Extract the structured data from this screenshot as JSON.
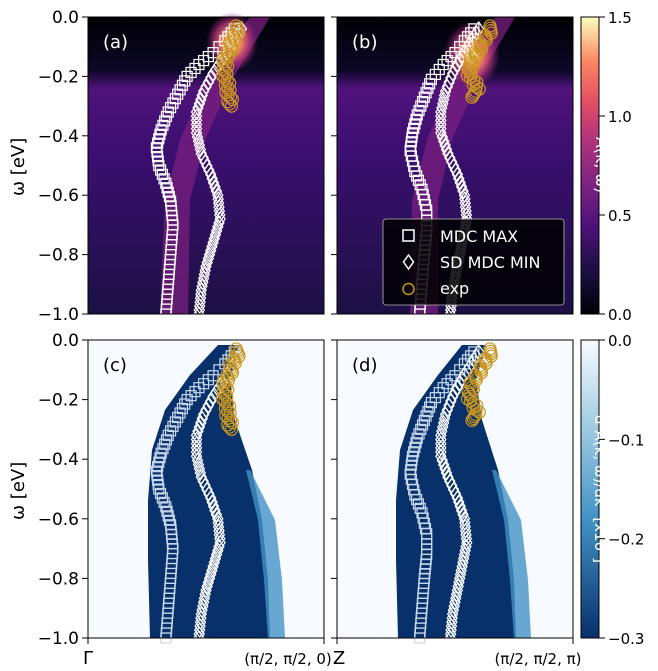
{
  "figure": {
    "y_axis_label": "ω [eV]",
    "colorbar_top_label": "A(k, ω)",
    "colorbar_bottom_label": "d²A(k, ω)/dk² [x10³]",
    "colorbar_top_ticks": [
      "1.5",
      "1.0",
      "0.5",
      "0.0"
    ],
    "colorbar_bottom_ticks": [
      "0.0",
      "−0.1",
      "−0.2",
      "−0.3"
    ],
    "y_ticks": [
      "0.0",
      "−0.2",
      "−0.4",
      "−0.6",
      "−0.8",
      "−1.0"
    ],
    "x_tick_left_a": "Γ",
    "x_tick_right_a": "(π/2, π/2, 0)",
    "x_tick_left_b": "Z",
    "x_tick_right_b": "(π/2, π/2, π)",
    "legend": [
      {
        "label": "MDC MAX",
        "marker": "square",
        "color": "#ffffff"
      },
      {
        "label": "SD MDC MIN",
        "marker": "diamond",
        "color": "#ffffff"
      },
      {
        "label": "exp",
        "marker": "circle",
        "color": "#c8961e"
      }
    ],
    "colors": {
      "exp": "#c8961e",
      "dark_bg": "#000004",
      "blue_dark": "#08306b"
    }
  },
  "chart_data": [
    {
      "panel": "a",
      "panel_label": "(a)",
      "type": "heatmap",
      "ylim": [
        -1.0,
        0.0
      ],
      "colorbar_range": [
        0.0,
        1.5
      ],
      "mdc_max": [
        [
          0.62,
          -0.04
        ],
        [
          0.58,
          -0.08
        ],
        [
          0.53,
          -0.12
        ],
        [
          0.47,
          -0.16
        ],
        [
          0.42,
          -0.2
        ],
        [
          0.38,
          -0.26
        ],
        [
          0.34,
          -0.32
        ],
        [
          0.31,
          -0.38
        ],
        [
          0.29,
          -0.44
        ],
        [
          0.3,
          -0.5
        ],
        [
          0.33,
          -0.56
        ],
        [
          0.35,
          -0.62
        ],
        [
          0.36,
          -0.7
        ],
        [
          0.35,
          -0.8
        ],
        [
          0.34,
          -0.9
        ],
        [
          0.33,
          -1.0
        ]
      ],
      "sd_mdc_min": [
        [
          0.65,
          -0.04
        ],
        [
          0.62,
          -0.08
        ],
        [
          0.58,
          -0.13
        ],
        [
          0.53,
          -0.19
        ],
        [
          0.49,
          -0.25
        ],
        [
          0.46,
          -0.32
        ],
        [
          0.46,
          -0.39
        ],
        [
          0.48,
          -0.46
        ],
        [
          0.52,
          -0.53
        ],
        [
          0.55,
          -0.6
        ],
        [
          0.56,
          -0.68
        ],
        [
          0.53,
          -0.76
        ],
        [
          0.5,
          -0.84
        ],
        [
          0.48,
          -0.92
        ],
        [
          0.47,
          -1.0
        ]
      ],
      "exp": [
        [
          0.64,
          -0.03
        ],
        [
          0.62,
          -0.07
        ],
        [
          0.6,
          -0.11
        ],
        [
          0.58,
          -0.15
        ],
        [
          0.58,
          -0.19
        ],
        [
          0.59,
          -0.23
        ],
        [
          0.6,
          -0.27
        ],
        [
          0.6,
          -0.3
        ]
      ]
    },
    {
      "panel": "b",
      "panel_label": "(b)",
      "type": "heatmap",
      "ylim": [
        -1.0,
        0.0
      ],
      "colorbar_range": [
        0.0,
        1.5
      ],
      "mdc_max": [
        [
          0.58,
          -0.04
        ],
        [
          0.54,
          -0.08
        ],
        [
          0.5,
          -0.12
        ],
        [
          0.45,
          -0.16
        ],
        [
          0.4,
          -0.21
        ],
        [
          0.37,
          -0.27
        ],
        [
          0.34,
          -0.33
        ],
        [
          0.32,
          -0.39
        ],
        [
          0.31,
          -0.45
        ],
        [
          0.33,
          -0.52
        ],
        [
          0.36,
          -0.58
        ],
        [
          0.38,
          -0.65
        ],
        [
          0.38,
          -0.72
        ],
        [
          0.37,
          -0.8
        ],
        [
          0.36,
          -0.9
        ],
        [
          0.35,
          -1.0
        ]
      ],
      "sd_mdc_min": [
        [
          0.6,
          -0.04
        ],
        [
          0.57,
          -0.08
        ],
        [
          0.53,
          -0.13
        ],
        [
          0.49,
          -0.19
        ],
        [
          0.46,
          -0.25
        ],
        [
          0.44,
          -0.32
        ],
        [
          0.44,
          -0.39
        ],
        [
          0.47,
          -0.46
        ],
        [
          0.51,
          -0.53
        ],
        [
          0.54,
          -0.6
        ],
        [
          0.55,
          -0.68
        ],
        [
          0.53,
          -0.76
        ],
        [
          0.51,
          -0.84
        ],
        [
          0.49,
          -0.92
        ],
        [
          0.48,
          -1.0
        ]
      ],
      "exp": [
        [
          0.66,
          -0.03
        ],
        [
          0.63,
          -0.07
        ],
        [
          0.6,
          -0.11
        ],
        [
          0.57,
          -0.15
        ],
        [
          0.56,
          -0.19
        ],
        [
          0.58,
          -0.22
        ],
        [
          0.6,
          -0.25
        ],
        [
          0.56,
          -0.27
        ]
      ]
    },
    {
      "panel": "c",
      "panel_label": "(c)",
      "type": "heatmap",
      "ylim": [
        -1.0,
        0.0
      ],
      "colorbar_range": [
        -0.3,
        0.0
      ],
      "mdc_max": [
        [
          0.62,
          -0.04
        ],
        [
          0.58,
          -0.08
        ],
        [
          0.53,
          -0.12
        ],
        [
          0.47,
          -0.16
        ],
        [
          0.42,
          -0.2
        ],
        [
          0.38,
          -0.26
        ],
        [
          0.34,
          -0.32
        ],
        [
          0.31,
          -0.38
        ],
        [
          0.29,
          -0.44
        ],
        [
          0.3,
          -0.5
        ],
        [
          0.33,
          -0.56
        ],
        [
          0.35,
          -0.62
        ],
        [
          0.36,
          -0.7
        ],
        [
          0.35,
          -0.8
        ],
        [
          0.34,
          -0.9
        ],
        [
          0.33,
          -1.0
        ]
      ],
      "sd_mdc_min": [
        [
          0.65,
          -0.04
        ],
        [
          0.62,
          -0.08
        ],
        [
          0.58,
          -0.13
        ],
        [
          0.53,
          -0.19
        ],
        [
          0.49,
          -0.25
        ],
        [
          0.46,
          -0.32
        ],
        [
          0.46,
          -0.39
        ],
        [
          0.48,
          -0.46
        ],
        [
          0.52,
          -0.53
        ],
        [
          0.55,
          -0.6
        ],
        [
          0.56,
          -0.68
        ],
        [
          0.53,
          -0.76
        ],
        [
          0.5,
          -0.84
        ],
        [
          0.48,
          -0.92
        ],
        [
          0.47,
          -1.0
        ]
      ],
      "exp": [
        [
          0.64,
          -0.03
        ],
        [
          0.62,
          -0.07
        ],
        [
          0.6,
          -0.11
        ],
        [
          0.58,
          -0.15
        ],
        [
          0.58,
          -0.19
        ],
        [
          0.59,
          -0.23
        ],
        [
          0.6,
          -0.27
        ],
        [
          0.6,
          -0.3
        ]
      ]
    },
    {
      "panel": "d",
      "panel_label": "(d)",
      "type": "heatmap",
      "ylim": [
        -1.0,
        0.0
      ],
      "colorbar_range": [
        -0.3,
        0.0
      ],
      "mdc_max": [
        [
          0.58,
          -0.04
        ],
        [
          0.54,
          -0.08
        ],
        [
          0.5,
          -0.12
        ],
        [
          0.45,
          -0.16
        ],
        [
          0.4,
          -0.21
        ],
        [
          0.37,
          -0.27
        ],
        [
          0.34,
          -0.33
        ],
        [
          0.32,
          -0.39
        ],
        [
          0.31,
          -0.45
        ],
        [
          0.33,
          -0.52
        ],
        [
          0.36,
          -0.58
        ],
        [
          0.38,
          -0.65
        ],
        [
          0.38,
          -0.72
        ],
        [
          0.37,
          -0.8
        ],
        [
          0.36,
          -0.9
        ],
        [
          0.35,
          -1.0
        ]
      ],
      "sd_mdc_min": [
        [
          0.6,
          -0.04
        ],
        [
          0.57,
          -0.08
        ],
        [
          0.53,
          -0.13
        ],
        [
          0.49,
          -0.19
        ],
        [
          0.46,
          -0.25
        ],
        [
          0.44,
          -0.32
        ],
        [
          0.44,
          -0.39
        ],
        [
          0.47,
          -0.46
        ],
        [
          0.51,
          -0.53
        ],
        [
          0.54,
          -0.6
        ],
        [
          0.55,
          -0.68
        ],
        [
          0.53,
          -0.76
        ],
        [
          0.51,
          -0.84
        ],
        [
          0.49,
          -0.92
        ],
        [
          0.48,
          -1.0
        ]
      ],
      "exp": [
        [
          0.66,
          -0.03
        ],
        [
          0.63,
          -0.07
        ],
        [
          0.6,
          -0.11
        ],
        [
          0.57,
          -0.15
        ],
        [
          0.56,
          -0.19
        ],
        [
          0.58,
          -0.22
        ],
        [
          0.6,
          -0.25
        ],
        [
          0.56,
          -0.27
        ]
      ]
    }
  ]
}
